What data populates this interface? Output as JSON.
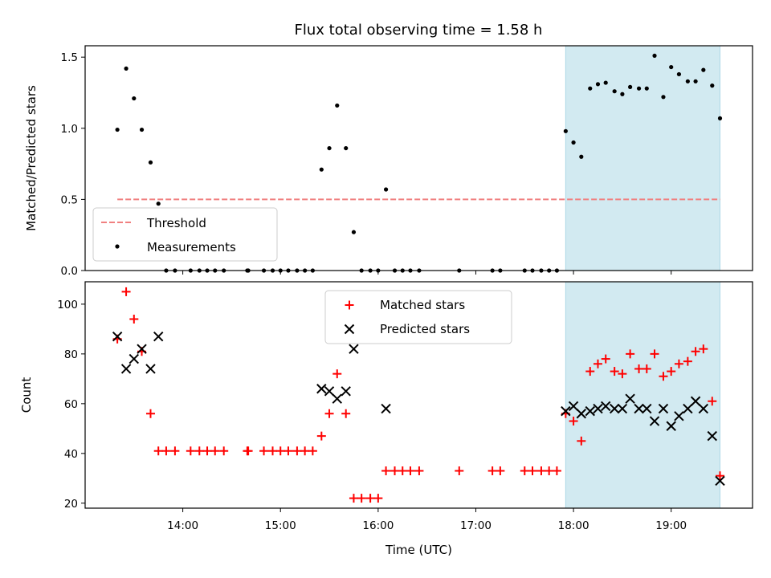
{
  "title": "Flux total observing time = 1.58 h",
  "colors": {
    "shade": "#add8e6",
    "threshold": "#f08080",
    "measurement": "#000000",
    "matched": "#ff0000",
    "predicted": "#000000"
  },
  "chart_data": [
    {
      "type": "scatter",
      "ylabel": "Matched/Predicted stars",
      "xlim": [
        13.0,
        19.833
      ],
      "ylim": [
        0.0,
        1.58
      ],
      "yticks": [
        0.0,
        0.5,
        1.0,
        1.5
      ],
      "ytick_labels": [
        "0.0",
        "0.5",
        "1.0",
        "1.5"
      ],
      "shaded_interval": [
        17.92,
        19.5
      ],
      "threshold": {
        "name": "Threshold",
        "value": 0.5,
        "x_range": [
          13.33,
          19.5
        ]
      },
      "legend": [
        "Threshold",
        "Measurements"
      ],
      "legend_position": "lower-left",
      "series": [
        {
          "name": "Measurements",
          "x": [
            13.33,
            13.42,
            13.5,
            13.58,
            13.67,
            13.75,
            13.83,
            13.92,
            14.08,
            14.17,
            14.25,
            14.33,
            14.42,
            14.66,
            14.67,
            14.83,
            14.92,
            15.0,
            15.08,
            15.17,
            15.25,
            15.33,
            15.42,
            15.5,
            15.58,
            15.67,
            15.75,
            15.83,
            15.92,
            16.0,
            16.08,
            16.17,
            16.25,
            16.33,
            16.42,
            16.83,
            17.17,
            17.25,
            17.5,
            17.58,
            17.67,
            17.75,
            17.83,
            17.92,
            18.0,
            18.08,
            18.17,
            18.25,
            18.33,
            18.42,
            18.5,
            18.58,
            18.67,
            18.75,
            18.83,
            18.92,
            19.0,
            19.08,
            19.17,
            19.25,
            19.33,
            19.42,
            19.5
          ],
          "y": [
            0.99,
            1.42,
            1.21,
            0.99,
            0.76,
            0.47,
            0.0,
            0.0,
            0.0,
            0.0,
            0.0,
            0.0,
            0.0,
            0.0,
            0.0,
            0.0,
            0.0,
            0.0,
            0.0,
            0.0,
            0.0,
            0.0,
            0.71,
            0.86,
            1.16,
            0.86,
            0.27,
            0.0,
            0.0,
            0.0,
            0.57,
            0.0,
            0.0,
            0.0,
            0.0,
            0.0,
            0.0,
            0.0,
            0.0,
            0.0,
            0.0,
            0.0,
            0.0,
            0.98,
            0.9,
            0.8,
            1.28,
            1.31,
            1.32,
            1.26,
            1.24,
            1.29,
            1.28,
            1.28,
            1.51,
            1.22,
            1.43,
            1.38,
            1.33,
            1.33,
            1.41,
            1.3,
            1.07
          ]
        }
      ]
    },
    {
      "type": "scatter",
      "xlabel": "Time (UTC)",
      "ylabel": "Count",
      "xlim": [
        13.0,
        19.833
      ],
      "ylim": [
        18,
        109
      ],
      "xticks": [
        14,
        15,
        16,
        17,
        18,
        19
      ],
      "xtick_labels": [
        "14:00",
        "15:00",
        "16:00",
        "17:00",
        "18:00",
        "19:00"
      ],
      "yticks": [
        20,
        40,
        60,
        80,
        100
      ],
      "ytick_labels": [
        "20",
        "40",
        "60",
        "80",
        "100"
      ],
      "shaded_interval": [
        17.92,
        19.5
      ],
      "legend": [
        "Matched stars",
        "Predicted stars"
      ],
      "legend_position": "upper-center",
      "series": [
        {
          "name": "Matched stars",
          "marker": "+",
          "x": [
            13.33,
            13.42,
            13.5,
            13.58,
            13.67,
            13.75,
            13.83,
            13.92,
            14.08,
            14.17,
            14.25,
            14.33,
            14.42,
            14.66,
            14.67,
            14.83,
            14.92,
            15.0,
            15.08,
            15.17,
            15.25,
            15.33,
            15.42,
            15.5,
            15.58,
            15.67,
            15.75,
            15.83,
            15.92,
            16.0,
            16.08,
            16.17,
            16.25,
            16.33,
            16.42,
            16.83,
            17.17,
            17.25,
            17.5,
            17.58,
            17.67,
            17.75,
            17.83,
            17.92,
            18.0,
            18.08,
            18.17,
            18.25,
            18.33,
            18.42,
            18.5,
            18.58,
            18.67,
            18.75,
            18.83,
            18.92,
            19.0,
            19.08,
            19.17,
            19.25,
            19.33,
            19.42,
            19.5
          ],
          "y": [
            86,
            105,
            94,
            81,
            56,
            41,
            41,
            41,
            41,
            41,
            41,
            41,
            41,
            41,
            41,
            41,
            41,
            41,
            41,
            41,
            41,
            41,
            47,
            56,
            72,
            56,
            22,
            22,
            22,
            22,
            33,
            33,
            33,
            33,
            33,
            33,
            33,
            33,
            33,
            33,
            33,
            33,
            33,
            56,
            53,
            45,
            73,
            76,
            78,
            73,
            72,
            80,
            74,
            74,
            80,
            71,
            73,
            76,
            77,
            81,
            82,
            61,
            31
          ]
        },
        {
          "name": "Predicted stars",
          "marker": "x",
          "x": [
            13.33,
            13.42,
            13.5,
            13.58,
            13.67,
            13.75,
            15.42,
            15.5,
            15.58,
            15.67,
            15.75,
            16.08,
            17.92,
            18.0,
            18.08,
            18.17,
            18.25,
            18.33,
            18.42,
            18.5,
            18.58,
            18.67,
            18.75,
            18.83,
            18.92,
            19.0,
            19.08,
            19.17,
            19.25,
            19.33,
            19.42,
            19.5
          ],
          "y": [
            87,
            74,
            78,
            82,
            74,
            87,
            66,
            65,
            62,
            65,
            82,
            58,
            57,
            59,
            56,
            57,
            58,
            59,
            58,
            58,
            62,
            58,
            58,
            53,
            58,
            51,
            55,
            58,
            61,
            58,
            47,
            29
          ]
        }
      ]
    }
  ]
}
